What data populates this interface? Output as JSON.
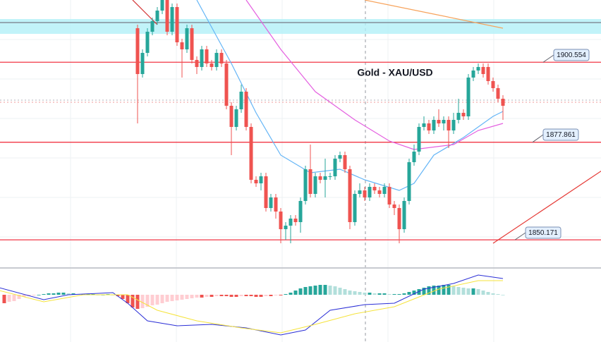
{
  "chart_data": {
    "type": "candlestick",
    "title": "Gold - XAU/USD",
    "ylim": [
      1842.6,
      1918.2
    ],
    "up_color": "#26a69a",
    "down_color": "#ef5350",
    "candles": [
      [
        1910.2,
        1911.2,
        1883.2,
        1897.2
      ],
      [
        1897.2,
        1904.2,
        1896.2,
        1903.2
      ],
      [
        1903.2,
        1910.2,
        1902.2,
        1909.2
      ],
      [
        1909.2,
        1913.2,
        1908.2,
        1912.2
      ],
      [
        1912.2,
        1916.2,
        1911.2,
        1915.2
      ],
      [
        1915.2,
        1918.2,
        1914.2,
        1918.2
      ],
      [
        1918.2,
        1918.2,
        1908.2,
        1909.2
      ],
      [
        1909.2,
        1917.2,
        1908.2,
        1916.2
      ],
      [
        1916.2,
        1917.2,
        1905.2,
        1906.2
      ],
      [
        1906.2,
        1907.2,
        1896.2,
        1904.2
      ],
      [
        1904.2,
        1911.2,
        1903.2,
        1910.2
      ],
      [
        1910.2,
        1911.2,
        1900.2,
        1901.2
      ],
      [
        1901.2,
        1902.2,
        1897.2,
        1899.2
      ],
      [
        1899.2,
        1905.2,
        1898.2,
        1904.2
      ],
      [
        1904.2,
        1905.2,
        1899.2,
        1900.2
      ],
      [
        1900.2,
        1901.2,
        1898.2,
        1899.2
      ],
      [
        1899.2,
        1904.2,
        1898.2,
        1903.2
      ],
      [
        1903.2,
        1904.2,
        1899.2,
        1900.2
      ],
      [
        1900.2,
        1901.2,
        1887.2,
        1888.2
      ],
      [
        1888.2,
        1889.2,
        1874.2,
        1882.2
      ],
      [
        1882.2,
        1888.2,
        1881.2,
        1887.2
      ],
      [
        1887.2,
        1894.2,
        1886.2,
        1892.2
      ],
      [
        1892.2,
        1893.2,
        1881.2,
        1882.2
      ],
      [
        1882.2,
        1883.2,
        1866.2,
        1867.2
      ],
      [
        1867.2,
        1868.2,
        1865.2,
        1866.2
      ],
      [
        1866.2,
        1869.2,
        1864.2,
        1868.2
      ],
      [
        1868.2,
        1869.2,
        1858.2,
        1859.2
      ],
      [
        1859.2,
        1863.2,
        1858.2,
        1862.2
      ],
      [
        1862.2,
        1863.2,
        1856.2,
        1858.2
      ],
      [
        1858.2,
        1859.2,
        1849.2,
        1853.2
      ],
      [
        1853.2,
        1855.2,
        1850.2,
        1854.2
      ],
      [
        1854.2,
        1857.2,
        1849.2,
        1856.2
      ],
      [
        1856.2,
        1857.2,
        1854.2,
        1855.2
      ],
      [
        1855.2,
        1862.2,
        1852.2,
        1861.2
      ],
      [
        1861.2,
        1871.2,
        1860.2,
        1870.2
      ],
      [
        1870.2,
        1877.2,
        1862.2,
        1863.2
      ],
      [
        1863.2,
        1869.2,
        1862.2,
        1868.2
      ],
      [
        1868.2,
        1869.2,
        1866.2,
        1867.2
      ],
      [
        1867.2,
        1873.2,
        1862.2,
        1868.2
      ],
      [
        1868.2,
        1869.2,
        1867.2,
        1868.2
      ],
      [
        1868.2,
        1874.2,
        1867.2,
        1873.2
      ],
      [
        1873.2,
        1875.2,
        1872.2,
        1874.2
      ],
      [
        1874.2,
        1875.2,
        1869.2,
        1870.2
      ],
      [
        1870.2,
        1871.2,
        1853.2,
        1855.2
      ],
      [
        1855.2,
        1864.2,
        1854.2,
        1863.2
      ],
      [
        1863.2,
        1866.2,
        1862.2,
        1864.2
      ],
      [
        1864.2,
        1865.2,
        1861.2,
        1862.2
      ],
      [
        1862.2,
        1866.2,
        1861.2,
        1865.2
      ],
      [
        1865.2,
        1866.2,
        1863.2,
        1864.2
      ],
      [
        1864.2,
        1865.2,
        1862.2,
        1863.2
      ],
      [
        1863.2,
        1866.2,
        1862.2,
        1865.2
      ],
      [
        1865.2,
        1866.2,
        1859.2,
        1860.2
      ],
      [
        1860.2,
        1861.2,
        1857.2,
        1859.2
      ],
      [
        1859.2,
        1860.2,
        1849.2,
        1853.2
      ],
      [
        1853.2,
        1862.2,
        1852.2,
        1861.2
      ],
      [
        1861.2,
        1873.2,
        1860.2,
        1872.2
      ],
      [
        1872.2,
        1877.2,
        1871.2,
        1875.2
      ],
      [
        1875.2,
        1883.2,
        1874.2,
        1882.2
      ],
      [
        1882.2,
        1885.2,
        1881.2,
        1883.2
      ],
      [
        1883.2,
        1884.2,
        1880.2,
        1881.2
      ],
      [
        1881.2,
        1885.2,
        1880.2,
        1884.2
      ],
      [
        1884.2,
        1887.2,
        1882.2,
        1883.2
      ],
      [
        1883.2,
        1885.2,
        1881.2,
        1884.2
      ],
      [
        1884.2,
        1885.2,
        1876.2,
        1881.2
      ],
      [
        1881.2,
        1886.2,
        1880.2,
        1884.2
      ],
      [
        1884.2,
        1890.2,
        1883.2,
        1886.2
      ],
      [
        1886.2,
        1887.2,
        1884.2,
        1885.2
      ],
      [
        1885.2,
        1897.2,
        1884.2,
        1896.2
      ],
      [
        1896.2,
        1899.2,
        1895.2,
        1898.2
      ],
      [
        1898.2,
        1900.2,
        1897.2,
        1899.2
      ],
      [
        1899.2,
        1900.2,
        1896.2,
        1897.2
      ],
      [
        1899.2,
        1900.2,
        1894.2,
        1895.2
      ],
      [
        1895.2,
        1896.2,
        1892.2,
        1893.2
      ],
      [
        1893.2,
        1894.2,
        1889.2,
        1890.2
      ],
      [
        1890.2,
        1891.2,
        1884.2,
        1888.2
      ]
    ],
    "levels": [
      {
        "value": 1900.554,
        "label": "1900.554",
        "color": "#f23645"
      },
      {
        "value": 1877.861,
        "label": "1877.861",
        "color": "#f23645"
      },
      {
        "value": 1850.171,
        "label": "1850.171",
        "color": "#f23645"
      },
      {
        "value": 1911.8,
        "color": "#787b86"
      }
    ],
    "zones": [
      {
        "from": 1908.6,
        "to": 1912.8,
        "color": "#b2f0f7"
      }
    ],
    "overlays": [
      {
        "color": "#64b5f6",
        "x": [
          12,
          19,
          24,
          29,
          35,
          41,
          46,
          53,
          56,
          60,
          66,
          72,
          74
        ],
        "values": [
          1918.2,
          1900.2,
          1886.2,
          1874.2,
          1869.2,
          1870.2,
          1867.2,
          1864.2,
          1866.2,
          1874.2,
          1879.2,
          1885.2,
          1886.6
        ]
      },
      {
        "color": "#e45fe0",
        "x": [
          22,
          29,
          36,
          44,
          51,
          56,
          64,
          69,
          74
        ],
        "values": [
          1918.2,
          1904.2,
          1892.2,
          1884.2,
          1878.2,
          1875.8,
          1877.2,
          1881.2,
          1883.2
        ]
      },
      {
        "color": "#f7a35c",
        "x": [
          46,
          60,
          74
        ],
        "values": [
          1918.2,
          1914.2,
          1910.2
        ]
      },
      {
        "color": "#d32f2f",
        "x": [
          -1,
          4
        ],
        "values": [
          1918.2,
          1911.2
        ]
      },
      {
        "color": "#e53935",
        "x": [
          72,
          94
        ],
        "values": [
          1849.2,
          1869.8
        ]
      }
    ],
    "macd_ylim": [
      -67,
      38
    ],
    "macd_histogram": [
      -12,
      -10,
      -9,
      -6,
      -3,
      -2,
      -1,
      0,
      1,
      2,
      2,
      3,
      3,
      2,
      2,
      1,
      1,
      1,
      1,
      0,
      0,
      1,
      0,
      -2,
      -6,
      -12,
      -18,
      -20,
      -19,
      -17,
      -15,
      -14,
      -12,
      -10,
      -9,
      -8,
      -7,
      -6,
      -5,
      -4,
      -4,
      -3,
      -3,
      -2,
      -2,
      -2,
      -3,
      -3,
      -2,
      -2,
      -2,
      -3,
      -3,
      -2,
      -2,
      -1,
      -1,
      1,
      3,
      6,
      9,
      11,
      12,
      13,
      14,
      14,
      13,
      12,
      10,
      8,
      6,
      5,
      4,
      3,
      3,
      2,
      2,
      2,
      1,
      1,
      1,
      2,
      4,
      6,
      8,
      10,
      12,
      13,
      13,
      14,
      14,
      12,
      11,
      10,
      9,
      9,
      8,
      6,
      4,
      2,
      1,
      0
    ],
    "macd_lines": [
      {
        "color": "#2a2ed6",
        "x": [
          -28,
          -19,
          -14,
          -5,
          -2,
          2,
          8,
          15,
          22,
          29,
          34,
          39,
          46,
          52,
          58,
          64,
          69,
          74
        ],
        "values": [
          10,
          -7,
          0,
          3,
          -12,
          -37,
          -44,
          -42,
          -47,
          -57,
          -50,
          -22,
          -14,
          -12,
          8,
          16,
          28,
          23
        ]
      },
      {
        "color": "#f5e33b",
        "x": [
          -28,
          -19,
          -11,
          -2,
          4,
          12,
          21,
          29,
          36,
          44,
          52,
          61,
          69,
          74
        ],
        "values": [
          6,
          -10,
          0,
          0,
          -22,
          -37,
          -47,
          -54,
          -42,
          -27,
          -17,
          8,
          20,
          20
        ]
      }
    ]
  }
}
